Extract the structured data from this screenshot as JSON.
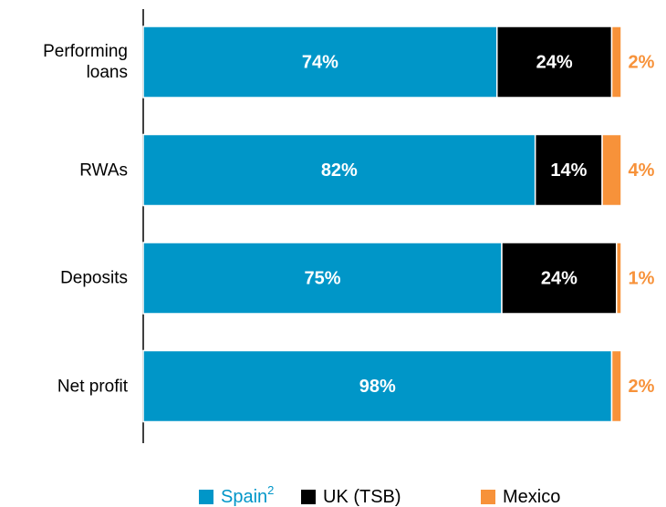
{
  "chart_data": {
    "type": "stacked_bar_horizontal",
    "categories": [
      "Performing loans",
      "RWAs",
      "Deposits",
      "Net profit"
    ],
    "xlim": [
      0,
      100
    ],
    "series": [
      {
        "name": "Spain",
        "name_superscript": "2",
        "color": "#0096c8",
        "values": [
          74,
          82,
          75,
          98
        ],
        "value_labels": [
          "74%",
          "82%",
          "75%",
          "98%"
        ]
      },
      {
        "name": "UK (TSB)",
        "color": "#000000",
        "values": [
          24,
          14,
          24,
          null
        ],
        "value_labels": [
          "24%",
          "14%",
          "24%",
          null
        ]
      },
      {
        "name": "Mexico",
        "color": "#f7923a",
        "values": [
          2,
          4,
          1,
          2
        ],
        "value_labels": [
          "2%",
          "4%",
          "1%",
          "2%"
        ]
      }
    ]
  }
}
